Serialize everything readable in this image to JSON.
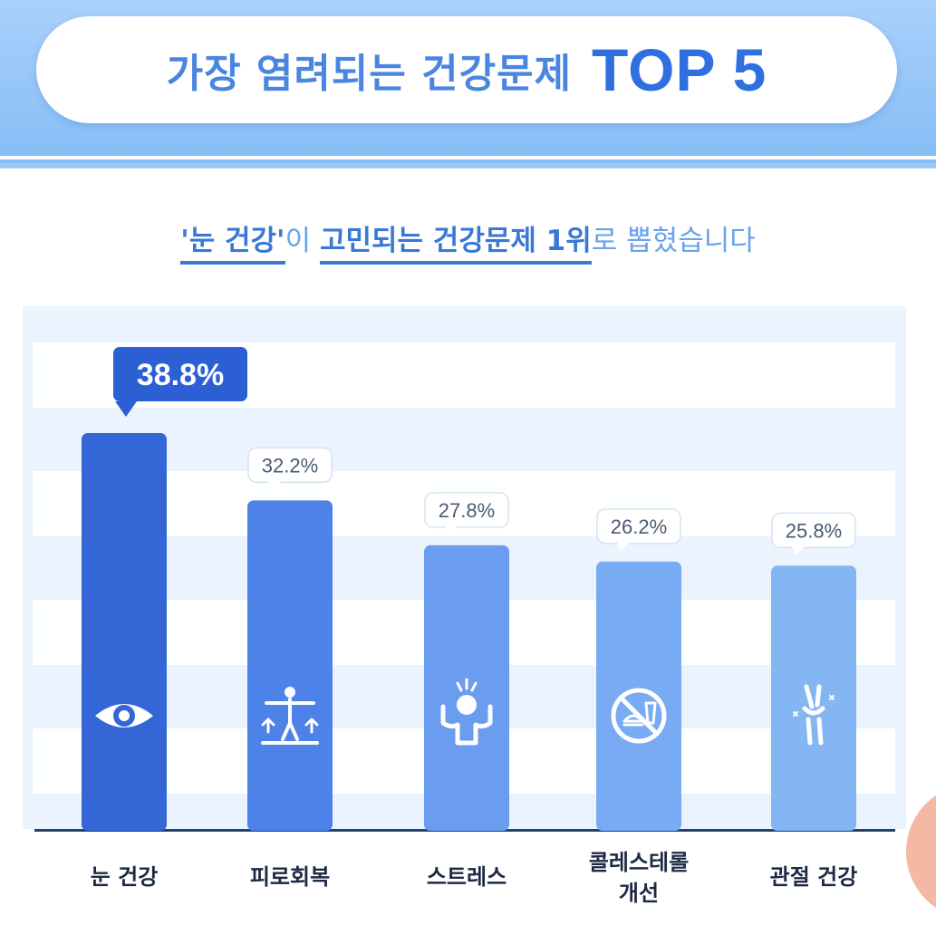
{
  "header": {
    "title": "가장 염려되는 건강문제",
    "title_top": "TOP 5"
  },
  "subtitle": {
    "part1": "'눈 건강'",
    "part2": "이 ",
    "part3": "고민되는 건강문제 1위",
    "part4": "로 뽑혔습니다"
  },
  "chart_data": {
    "type": "bar",
    "categories": [
      "눈 건강",
      "피로회복",
      "스트레스",
      "콜레스테롤 개선",
      "관절 건강"
    ],
    "category_lines": [
      [
        "눈 건강"
      ],
      [
        "피로회복"
      ],
      [
        "스트레스"
      ],
      [
        "콜레스테롤",
        "개선"
      ],
      [
        "관절 건강"
      ]
    ],
    "values": [
      38.8,
      32.2,
      27.8,
      26.2,
      25.8
    ],
    "value_labels": [
      "38.8%",
      "32.2%",
      "27.8%",
      "26.2%",
      "25.8%"
    ],
    "unit": "%",
    "highlight_index": 0,
    "icons": [
      "eye-icon",
      "fitness-icon",
      "stress-icon",
      "no-junk-food-icon",
      "joint-icon"
    ],
    "colors": [
      "#3566d6",
      "#4d83e8",
      "#6a9cf0",
      "#78abf3",
      "#84b6f4"
    ],
    "ylim": [
      0,
      44
    ],
    "grid": "horizontal bands"
  }
}
